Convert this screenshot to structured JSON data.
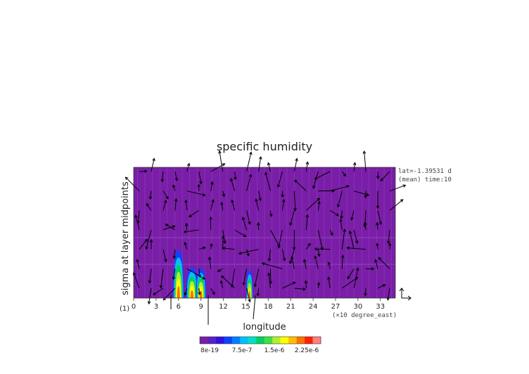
{
  "chart_data": {
    "type": "heatmap",
    "title": "specific humidity",
    "xlabel": "longitude",
    "ylabel": "sigma at layer midpoints",
    "x_units": "(×10 degree_east)",
    "y_tick_label": "(1)",
    "x_ticks": [
      "0",
      "3",
      "6",
      "9",
      "12",
      "15",
      "18",
      "21",
      "24",
      "27",
      "30",
      "33"
    ],
    "xlim": [
      0,
      35
    ],
    "annotations": [
      "lat=-1.39531 d",
      "(mean) time:10"
    ],
    "colorbar": {
      "tick_labels": [
        "8e-19",
        "7.5e-7",
        "1.5e-6",
        "2.25e-6"
      ],
      "colors": [
        "#7a1ea8",
        "#5a1ec8",
        "#3010e0",
        "#1040ff",
        "#0080ff",
        "#00c0ff",
        "#00e0c0",
        "#00d060",
        "#40e040",
        "#b0f030",
        "#ffff00",
        "#ffc000",
        "#ff7000",
        "#ff2000",
        "#ff8080"
      ]
    },
    "background_color": "#7a1ea8",
    "series": []
  }
}
